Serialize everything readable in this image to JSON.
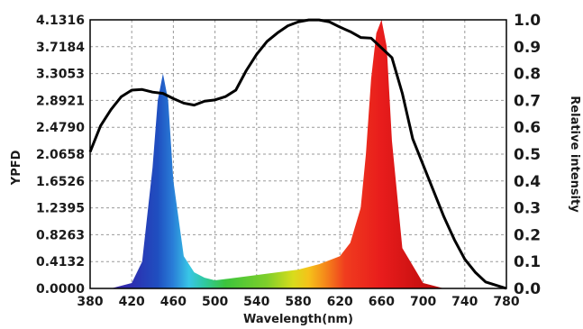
{
  "chart_data": {
    "type": "line",
    "xlabel": "Wavelength(nm)",
    "ylabel_left": "YPFD",
    "ylabel_right": "Relative intensity",
    "xlim": [
      380,
      780
    ],
    "ylim_left": [
      0,
      4.1316
    ],
    "ylim_right": [
      0,
      1.0
    ],
    "x_ticks": [
      "380",
      "420",
      "460",
      "500",
      "540",
      "580",
      "620",
      "660",
      "700",
      "740",
      "780"
    ],
    "y_left_ticks": [
      "0.0000",
      "0.4132",
      "0.8263",
      "1.2395",
      "1.6526",
      "2.0658",
      "2.4790",
      "2.8921",
      "3.3053",
      "3.7184",
      "4.1316"
    ],
    "y_right_ticks": [
      "0.0",
      "0.1",
      "0.2",
      "0.3",
      "0.4",
      "0.5",
      "0.6",
      "0.7",
      "0.8",
      "0.9",
      "1.0"
    ],
    "grid": true,
    "series": [
      {
        "name": "",
        "axis": "left",
        "x": [
          380,
          390,
          400,
          410,
          420,
          430,
          440,
          450,
          460,
          470,
          480,
          490,
          500,
          510,
          520,
          530,
          540,
          550,
          560,
          570,
          580,
          590,
          600,
          610,
          620,
          630,
          640,
          650,
          660,
          670,
          680,
          690,
          700,
          710,
          720,
          730,
          740,
          750,
          760,
          770,
          780
        ],
        "y": [
          2.1,
          2.5,
          2.75,
          2.95,
          3.05,
          3.06,
          3.02,
          3.0,
          2.92,
          2.85,
          2.82,
          2.88,
          2.9,
          2.95,
          3.05,
          3.35,
          3.6,
          3.8,
          3.93,
          4.04,
          4.1,
          4.13,
          4.13,
          4.1,
          4.02,
          3.95,
          3.86,
          3.85,
          3.7,
          3.55,
          3.0,
          2.3,
          1.9,
          1.5,
          1.1,
          0.75,
          0.45,
          0.25,
          0.1,
          0.05,
          0.0
        ]
      },
      {
        "name": "",
        "axis": "right",
        "x": [
          380,
          400,
          420,
          430,
          440,
          445,
          450,
          455,
          460,
          470,
          480,
          490,
          500,
          520,
          540,
          560,
          580,
          600,
          620,
          630,
          640,
          645,
          650,
          655,
          660,
          665,
          670,
          680,
          700,
          720,
          780
        ],
        "y": [
          0.0,
          0.0,
          0.02,
          0.1,
          0.45,
          0.7,
          0.8,
          0.7,
          0.4,
          0.12,
          0.06,
          0.04,
          0.03,
          0.04,
          0.05,
          0.06,
          0.07,
          0.09,
          0.12,
          0.17,
          0.3,
          0.5,
          0.78,
          0.95,
          1.0,
          0.9,
          0.55,
          0.15,
          0.02,
          0.0,
          0.0
        ]
      }
    ]
  }
}
